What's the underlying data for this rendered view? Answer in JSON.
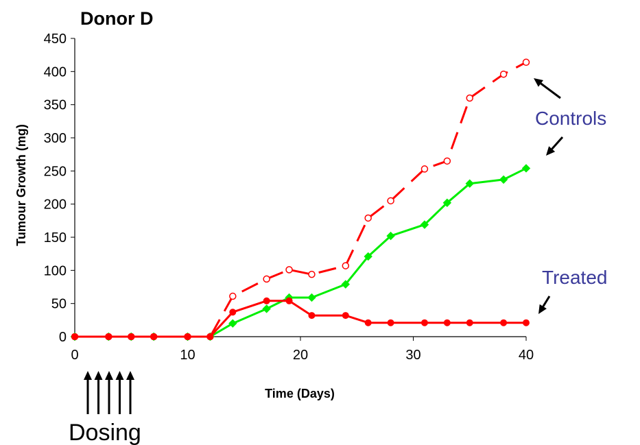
{
  "chart_data": {
    "type": "line",
    "title": "Donor D",
    "xlabel": "Time (Days)",
    "ylabel": "Tumour Growth (mg)",
    "xlim": [
      0,
      40
    ],
    "ylim": [
      0,
      450
    ],
    "xticks": [
      0,
      10,
      20,
      30,
      40
    ],
    "yticks": [
      0,
      50,
      100,
      150,
      200,
      250,
      300,
      350,
      400,
      450
    ],
    "grid": false,
    "legend": "none",
    "series": [
      {
        "color": "#ff0000",
        "style": "dashed",
        "marker": "open-circle",
        "x": [
          0,
          3,
          5,
          7,
          10,
          12,
          14,
          17,
          19,
          21,
          24,
          26,
          28,
          31,
          33,
          35,
          38,
          40
        ],
        "y": [
          0,
          0,
          0,
          0,
          0,
          0,
          61,
          87,
          101,
          94,
          107,
          179,
          205,
          253,
          265,
          360,
          396,
          414
        ]
      },
      {
        "color": "#00ee00",
        "style": "solid",
        "marker": "diamond",
        "x": [
          0,
          3,
          5,
          7,
          10,
          12,
          14,
          17,
          19,
          21,
          24,
          26,
          28,
          31,
          33,
          35,
          38,
          40
        ],
        "y": [
          0,
          0,
          0,
          0,
          0,
          0,
          20,
          42,
          59,
          59,
          79,
          121,
          152,
          169,
          202,
          231,
          237,
          254
        ]
      },
      {
        "color": "#ff0000",
        "style": "solid",
        "marker": "filled-circle",
        "x": [
          0,
          3,
          5,
          7,
          10,
          12,
          14,
          17,
          19,
          21,
          24,
          26,
          28,
          31,
          33,
          35,
          38,
          40
        ],
        "y": [
          0,
          0,
          0,
          0,
          0,
          0,
          37,
          54,
          54,
          32,
          32,
          21,
          21,
          21,
          21,
          21,
          21,
          21
        ]
      }
    ],
    "annotations": {
      "controls": "Controls",
      "treated": "Treated",
      "dosing": "Dosing",
      "annotation_color": "#3a3a9a"
    },
    "dosing_days": [
      1,
      2,
      3,
      4,
      5
    ]
  }
}
